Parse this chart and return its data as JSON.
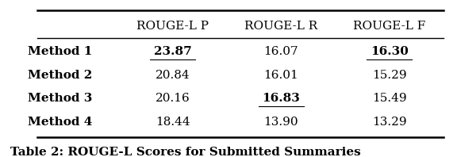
{
  "columns": [
    "",
    "ROUGE-L P",
    "ROUGE-L R",
    "ROUGE-L F"
  ],
  "rows": [
    [
      "Method 1",
      "23.87",
      "16.07",
      "16.30"
    ],
    [
      "Method 2",
      "20.84",
      "16.01",
      "15.29"
    ],
    [
      "Method 3",
      "20.16",
      "16.83",
      "15.49"
    ],
    [
      "Method 4",
      "18.44",
      "13.90",
      "13.29"
    ]
  ],
  "bold_underline": [
    [
      0,
      1
    ],
    [
      0,
      3
    ],
    [
      2,
      2
    ]
  ],
  "caption": "Table 2: ROUGE-L Scores for Submitted Summaries",
  "background_color": "#ffffff",
  "text_color": "#000000",
  "header_fontsize": 11,
  "cell_fontsize": 11,
  "caption_fontsize": 11
}
